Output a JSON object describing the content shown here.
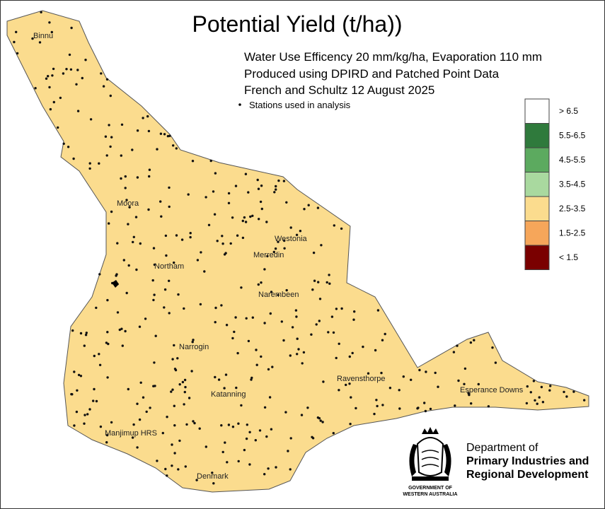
{
  "title": "Potential Yield (t/ha))",
  "subtitle": [
    "Water Use Efficency 20 mm/kg/ha, Evaporation 110 mm",
    "Produced using DPIRD and Patched Point Data",
    "French and Schultz 12 August 2025"
  ],
  "stations_note": "Stations used in analysis",
  "legend": [
    {
      "label": "> 6.5",
      "color": "#ffffff"
    },
    {
      "label": "5.5-6.5",
      "color": "#2f7a3c"
    },
    {
      "label": "4.5-5.5",
      "color": "#5caa5f"
    },
    {
      "label": "3.5-4.5",
      "color": "#a9d99f"
    },
    {
      "label": "2.5-3.5",
      "color": "#fbdc8e"
    },
    {
      "label": "1.5-2.5",
      "color": "#f6a65a"
    },
    {
      "label": "< 1.5",
      "color": "#7a0000"
    }
  ],
  "places": [
    "Binnu",
    "Moora",
    "Northam",
    "Westonia",
    "Merredin",
    "Narembeen",
    "Narrogin",
    "Katanning",
    "Ravensthorpe",
    "Esperance Downs",
    "Manjimup HRS",
    "Denmark"
  ],
  "logo": {
    "department": [
      "Department of",
      "Primary Industries and",
      "Regional Development"
    ],
    "government": [
      "GOVERNMENT OF",
      "WESTERN AUSTRALIA"
    ]
  }
}
